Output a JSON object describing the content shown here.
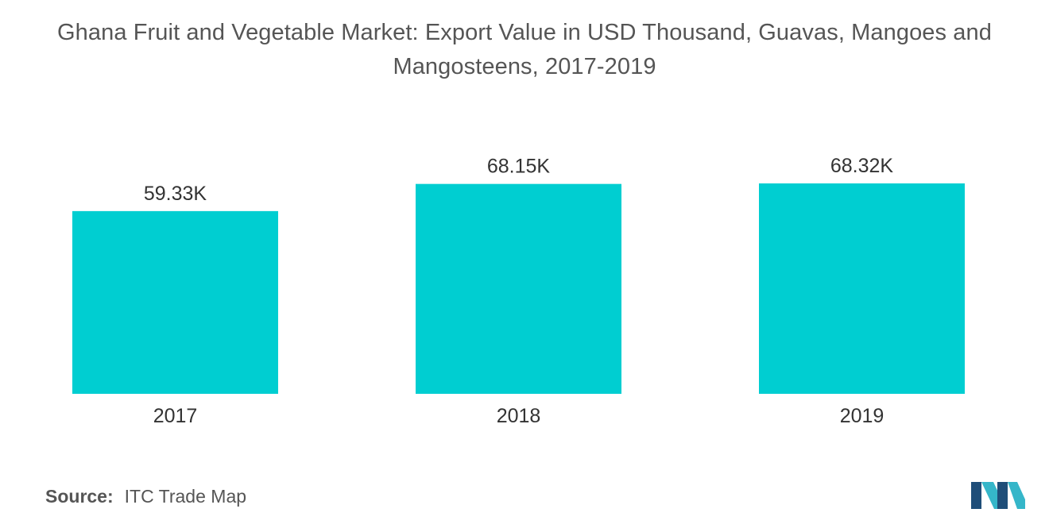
{
  "title": {
    "line1": "Ghana Fruit and Vegetable Market: Export Value in USD Thousand, Guavas, Mangoes and",
    "line2": "Mangosteens, 2017-2019"
  },
  "chart_data": {
    "type": "bar",
    "categories": [
      "2017",
      "2018",
      "2019"
    ],
    "values": [
      59.33,
      68.15,
      68.32
    ],
    "data_labels": [
      "59.33K",
      "68.15K",
      "68.32K"
    ],
    "title": "Ghana Fruit and Vegetable Market: Export Value in USD Thousand, Guavas, Mangoes and Mangosteens, 2017-2019",
    "xlabel": "",
    "ylabel": "",
    "grid": false,
    "bar_color": "#00CED1"
  },
  "source": {
    "label": "Source:",
    "text": "ITC Trade Map"
  },
  "colors": {
    "bar": "#00CED1",
    "text": "#555555",
    "logo_dark": "#1f4e79",
    "logo_light": "#35b6c9"
  },
  "logo": {
    "icon": "mordor-intelligence-logo-icon"
  }
}
